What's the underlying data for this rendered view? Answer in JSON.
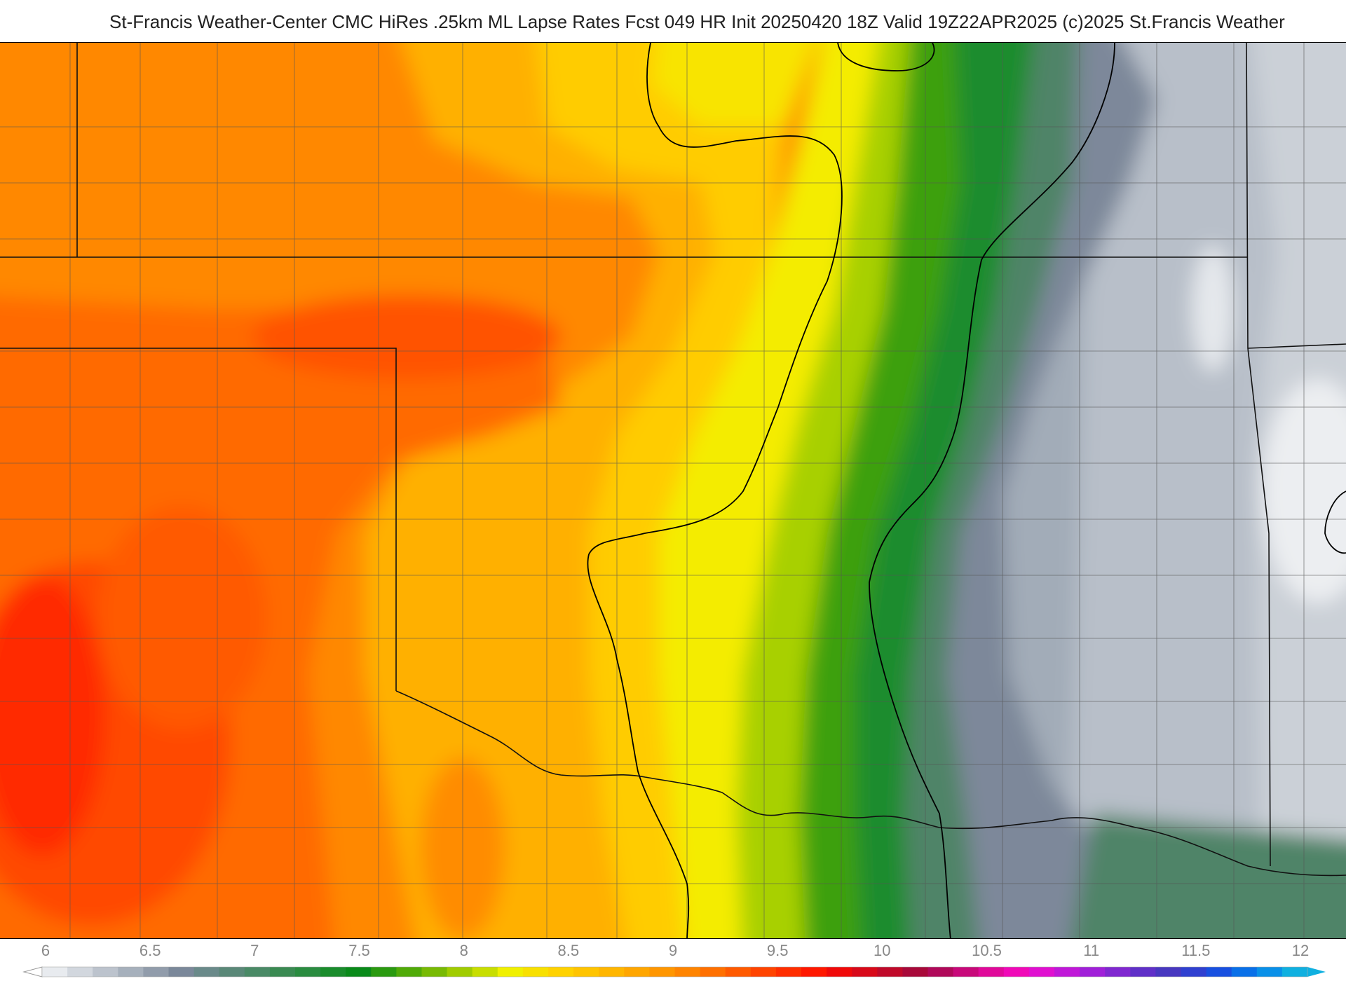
{
  "header": {
    "title": "St-Francis Weather-Center CMC HiRes .25km ML Lapse Rates  Fcst 049 HR Init 20250420 18Z  Valid 19Z22APR2025     (c)2025 St.Francis Weather"
  },
  "colorbar": {
    "ticks": [
      "6",
      "6.5",
      "7",
      "7.5",
      "8",
      "8.5",
      "9",
      "9.5",
      "10",
      "10.5",
      "11",
      "11.5",
      "12"
    ],
    "colors": [
      "#e8ebef",
      "#d2d7de",
      "#bcc3cd",
      "#a6b0bc",
      "#919cab",
      "#7b889a",
      "#6a8a8a",
      "#5a8878",
      "#4a8a66",
      "#3a8a52",
      "#2a8c40",
      "#1a8c2c",
      "#0a8a1a",
      "#2a9a10",
      "#50aa08",
      "#78ba04",
      "#a0cc00",
      "#c8de00",
      "#f0f000",
      "#f8e000",
      "#ffd200",
      "#ffc400",
      "#ffb600",
      "#ffa600",
      "#ff9600",
      "#ff8400",
      "#ff7000",
      "#ff5a00",
      "#ff4400",
      "#ff2e00",
      "#ff1800",
      "#f00a0a",
      "#d80a1a",
      "#c00a2a",
      "#a80a3a",
      "#b00a5a",
      "#c80a7a",
      "#e00a9a",
      "#f00ab8",
      "#e010d0",
      "#c018d8",
      "#a020d8",
      "#8028d0",
      "#6030c8",
      "#4838c0",
      "#3040d0",
      "#1850e0",
      "#0a70e8",
      "#0a90e8",
      "#10b0e0"
    ]
  }
}
